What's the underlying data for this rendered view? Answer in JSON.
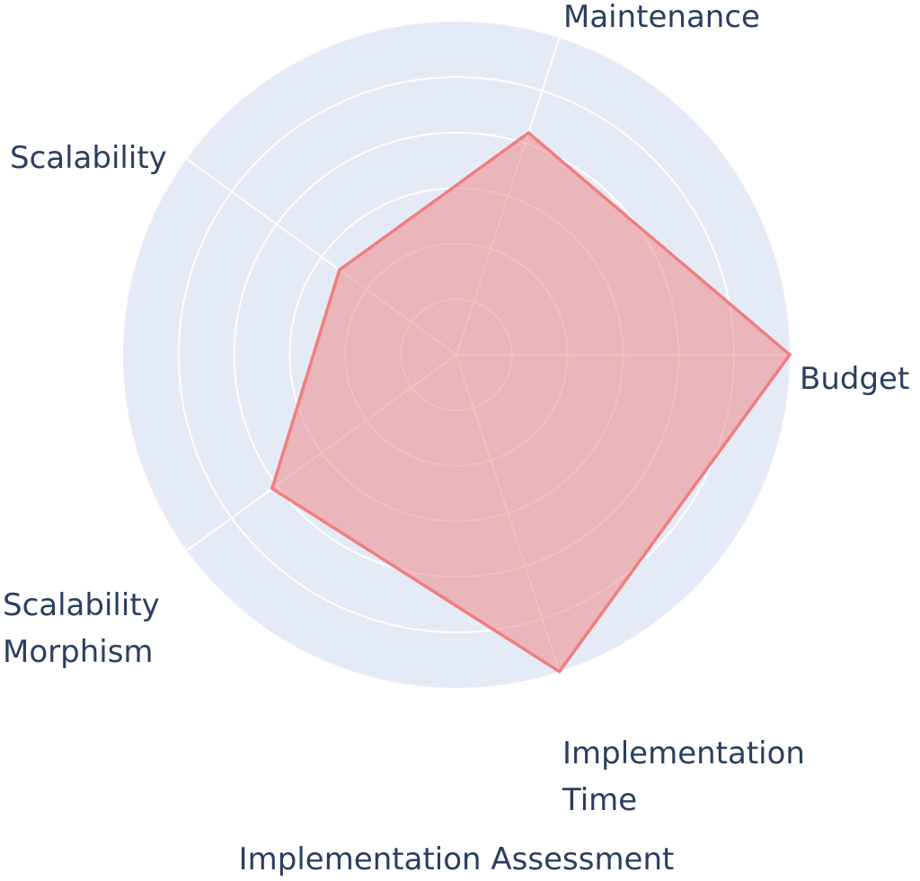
{
  "chart_data": {
    "type": "radar",
    "title": "Implementation Assessment",
    "axes": [
      {
        "key": "budget",
        "lines": [
          "Budget"
        ]
      },
      {
        "key": "maintenance",
        "lines": [
          "Maintenance"
        ]
      },
      {
        "key": "scalability",
        "lines": [
          "Scalability"
        ]
      },
      {
        "key": "scalability_morphism",
        "lines": [
          "Scalability",
          "Morphism"
        ]
      },
      {
        "key": "implementation_time",
        "lines": [
          "Implementation",
          "Time"
        ]
      }
    ],
    "series": [
      {
        "values": [
          6,
          4.2,
          2.6,
          4.1,
          6.0
        ],
        "color": "#ef7f7f",
        "fill": "rgba(239, 127, 127, 0.5)"
      }
    ],
    "radial_range": [
      0,
      6
    ],
    "radial_ticks": [
      1,
      2,
      3,
      4,
      5,
      6
    ],
    "grid": true,
    "background_color": "#e5ebf6",
    "grid_color": "#ffffff",
    "text_color": "#2a3f5f"
  }
}
